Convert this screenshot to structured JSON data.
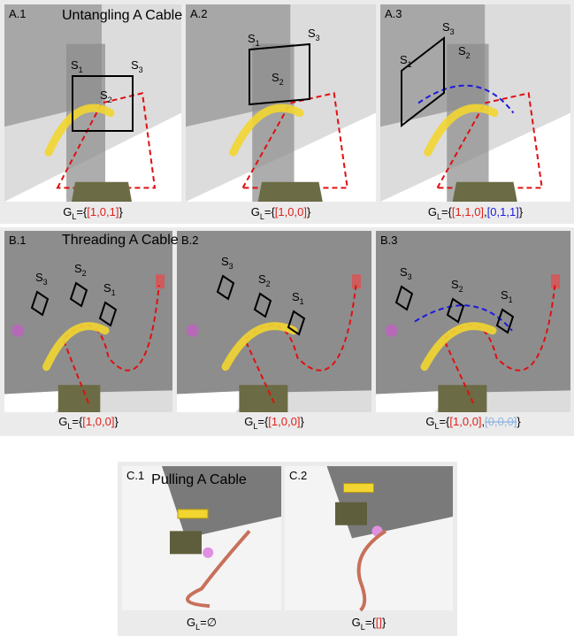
{
  "rows": [
    {
      "title": "Untangling A Cable",
      "panels": [
        {
          "id": "A.1",
          "labels": [
            {
              "text": "S",
              "sub": "1"
            },
            {
              "text": "S",
              "sub": "2"
            },
            {
              "text": "S",
              "sub": "3"
            }
          ],
          "caption": {
            "symbol": "G",
            "sub": "L",
            "parts": [
              {
                "text": "={",
                "color": "#000000"
              },
              {
                "text": "[1,0,1]",
                "color": "#e0201b"
              },
              {
                "text": "}",
                "color": "#000000"
              }
            ]
          }
        },
        {
          "id": "A.2",
          "labels": [
            {
              "text": "S",
              "sub": "1"
            },
            {
              "text": "S",
              "sub": "2"
            },
            {
              "text": "S",
              "sub": "3"
            }
          ],
          "caption": {
            "symbol": "G",
            "sub": "L",
            "parts": [
              {
                "text": "={",
                "color": "#000000"
              },
              {
                "text": "[1,0,0]",
                "color": "#e0201b"
              },
              {
                "text": "}",
                "color": "#000000"
              }
            ]
          }
        },
        {
          "id": "A.3",
          "labels": [
            {
              "text": "S",
              "sub": "1"
            },
            {
              "text": "S",
              "sub": "2"
            },
            {
              "text": "S",
              "sub": "3"
            }
          ],
          "caption": {
            "symbol": "G",
            "sub": "L",
            "parts": [
              {
                "text": "={",
                "color": "#000000"
              },
              {
                "text": "[1,1,0]",
                "color": "#e0201b"
              },
              {
                "text": ",",
                "color": "#000000"
              },
              {
                "text": "[0,1,1]",
                "color": "#1a1adf"
              },
              {
                "text": "}",
                "color": "#000000"
              }
            ]
          }
        }
      ]
    },
    {
      "title": "Threading A Cable",
      "panels": [
        {
          "id": "B.1",
          "labels": [
            {
              "text": "S",
              "sub": "3"
            },
            {
              "text": "S",
              "sub": "2"
            },
            {
              "text": "S",
              "sub": "1"
            }
          ],
          "caption": {
            "symbol": "G",
            "sub": "L",
            "parts": [
              {
                "text": "={",
                "color": "#000000"
              },
              {
                "text": "[1,0,0]",
                "color": "#e0201b"
              },
              {
                "text": "}",
                "color": "#000000"
              }
            ]
          }
        },
        {
          "id": "B.2",
          "labels": [
            {
              "text": "S",
              "sub": "3"
            },
            {
              "text": "S",
              "sub": "2"
            },
            {
              "text": "S",
              "sub": "1"
            }
          ],
          "caption": {
            "symbol": "G",
            "sub": "L",
            "parts": [
              {
                "text": "={",
                "color": "#000000"
              },
              {
                "text": "[1,0,0]",
                "color": "#e0201b"
              },
              {
                "text": "}",
                "color": "#000000"
              }
            ]
          }
        },
        {
          "id": "B.3",
          "labels": [
            {
              "text": "S",
              "sub": "3"
            },
            {
              "text": "S",
              "sub": "2"
            },
            {
              "text": "S",
              "sub": "1"
            }
          ],
          "caption": {
            "symbol": "G",
            "sub": "L",
            "parts": [
              {
                "text": "={",
                "color": "#000000"
              },
              {
                "text": "[1,0,0]",
                "color": "#e0201b"
              },
              {
                "text": ",",
                "color": "#000000"
              },
              {
                "text": "[0,0,0]",
                "color": "#8fb4e0",
                "struck": true
              },
              {
                "text": "}",
                "color": "#000000"
              }
            ]
          }
        }
      ]
    },
    {
      "title": "Pulling A Cable",
      "panels": [
        {
          "id": "C.1",
          "labels": [],
          "caption": {
            "symbol": "G",
            "sub": "L",
            "parts": [
              {
                "text": "=∅",
                "color": "#000000"
              }
            ]
          }
        },
        {
          "id": "C.2",
          "labels": [],
          "caption": {
            "symbol": "G",
            "sub": "L",
            "parts": [
              {
                "text": "={",
                "color": "#000000"
              },
              {
                "text": "[]",
                "color": "#e0201b"
              },
              {
                "text": "}",
                "color": "#000000"
              }
            ]
          }
        }
      ]
    }
  ]
}
